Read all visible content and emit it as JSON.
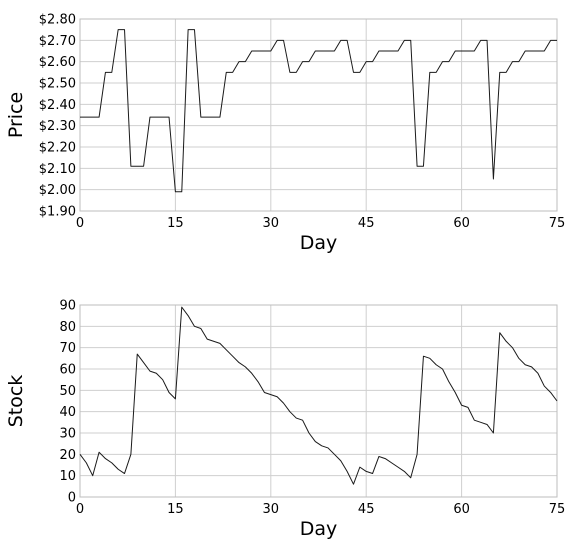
{
  "chart_data": [
    {
      "type": "line",
      "title": "",
      "xlabel": "Day",
      "ylabel": "Price",
      "xlim": [
        0,
        75
      ],
      "ylim": [
        1.9,
        2.8
      ],
      "grid": true,
      "x_ticks": [
        "0",
        "15",
        "30",
        "45",
        "60",
        "75"
      ],
      "y_ticks": [
        "$1.90",
        "$2.00",
        "$2.10",
        "$2.20",
        "$2.30",
        "$2.40",
        "$2.50",
        "$2.60",
        "$2.70",
        "$2.80"
      ],
      "series": [
        {
          "x": [
            0,
            1,
            2,
            3,
            4,
            5,
            6,
            7,
            8,
            9,
            10,
            11,
            12,
            13,
            14,
            15,
            16,
            17,
            18,
            19,
            20,
            21,
            22,
            23,
            24,
            25,
            26,
            27,
            28,
            29,
            30,
            31,
            32,
            33,
            34,
            35,
            36,
            37,
            38,
            39,
            40,
            41,
            42,
            43,
            44,
            45,
            46,
            47,
            48,
            49,
            50,
            51,
            52,
            53,
            54,
            55,
            56,
            57,
            58,
            59,
            60,
            61,
            62,
            63,
            64,
            65,
            66,
            67,
            68,
            69,
            70,
            71,
            72,
            73,
            74,
            75
          ],
          "values": [
            2.34,
            2.34,
            2.34,
            2.34,
            2.55,
            2.55,
            2.75,
            2.75,
            2.11,
            2.11,
            2.11,
            2.34,
            2.34,
            2.34,
            2.34,
            1.99,
            1.99,
            2.75,
            2.75,
            2.34,
            2.34,
            2.34,
            2.34,
            2.55,
            2.55,
            2.6,
            2.6,
            2.65,
            2.65,
            2.65,
            2.65,
            2.7,
            2.7,
            2.55,
            2.55,
            2.6,
            2.6,
            2.65,
            2.65,
            2.65,
            2.65,
            2.7,
            2.7,
            2.55,
            2.55,
            2.6,
            2.6,
            2.65,
            2.65,
            2.65,
            2.65,
            2.7,
            2.7,
            2.11,
            2.11,
            2.55,
            2.55,
            2.6,
            2.6,
            2.65,
            2.65,
            2.65,
            2.65,
            2.7,
            2.7,
            2.05,
            2.55,
            2.55,
            2.6,
            2.6,
            2.65,
            2.65,
            2.65,
            2.65,
            2.7,
            2.7
          ]
        }
      ]
    },
    {
      "type": "line",
      "title": "",
      "xlabel": "Day",
      "ylabel": "Stock",
      "xlim": [
        0,
        75
      ],
      "ylim": [
        0,
        90
      ],
      "grid": true,
      "x_ticks": [
        "0",
        "15",
        "30",
        "45",
        "60",
        "75"
      ],
      "y_ticks": [
        "0",
        "10",
        "20",
        "30",
        "40",
        "50",
        "60",
        "70",
        "80",
        "90"
      ],
      "series": [
        {
          "x": [
            0,
            1,
            2,
            3,
            4,
            5,
            6,
            7,
            8,
            9,
            10,
            11,
            12,
            13,
            14,
            15,
            16,
            17,
            18,
            19,
            20,
            21,
            22,
            23,
            24,
            25,
            26,
            27,
            28,
            29,
            30,
            31,
            32,
            33,
            34,
            35,
            36,
            37,
            38,
            39,
            40,
            41,
            42,
            43,
            44,
            45,
            46,
            47,
            48,
            49,
            50,
            51,
            52,
            53,
            54,
            55,
            56,
            57,
            58,
            59,
            60,
            61,
            62,
            63,
            64,
            65,
            66,
            67,
            68,
            69,
            70,
            71,
            72,
            73,
            74,
            75
          ],
          "values": [
            20,
            16,
            10,
            21,
            18,
            16,
            13,
            11,
            20,
            67,
            63,
            59,
            58,
            55,
            49,
            46,
            89,
            85,
            80,
            79,
            74,
            73,
            72,
            69,
            66,
            63,
            61,
            58,
            54,
            49,
            48,
            47,
            44,
            40,
            37,
            36,
            30,
            26,
            24,
            23,
            20,
            17,
            12,
            6,
            14,
            12,
            11,
            19,
            18,
            16,
            14,
            12,
            9,
            20,
            66,
            65,
            62,
            60,
            54,
            49,
            43,
            42,
            36,
            35,
            34,
            30,
            77,
            73,
            70,
            65,
            62,
            61,
            58,
            52,
            49,
            45
          ]
        }
      ]
    }
  ]
}
